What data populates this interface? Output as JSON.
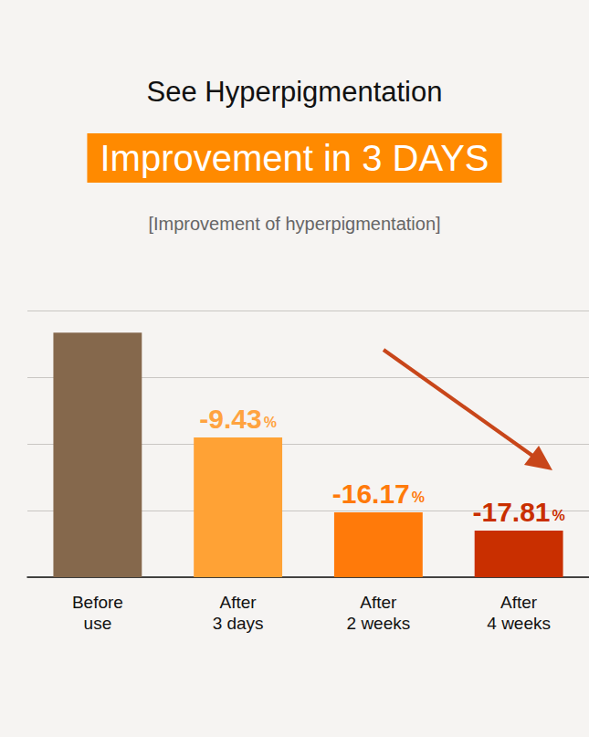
{
  "chart_data": {
    "type": "bar",
    "title": "See Hyperpigmentation",
    "subtitle": "Improvement in 3 DAYS",
    "caption": "[Improvement of hyperpigmentation]",
    "categories": [
      "Before use",
      "After 3 days",
      "After 2 weeks",
      "After 4 weeks"
    ],
    "values": [
      100,
      90.57,
      83.83,
      82.19
    ],
    "annotations": [
      null,
      "-9.43%",
      "-16.17%",
      "-17.81%"
    ],
    "colors": [
      "#85684c",
      "#ffa235",
      "#ff7a0a",
      "#c92f00"
    ],
    "ylim": [
      78,
      102
    ],
    "yticks": [
      78,
      84,
      90,
      96,
      102
    ],
    "grid": true,
    "tick_labels": "x"
  }
}
